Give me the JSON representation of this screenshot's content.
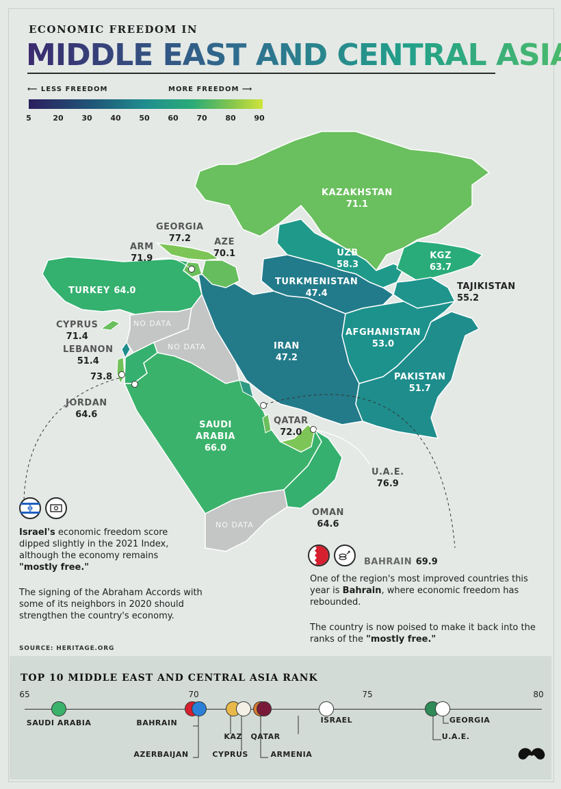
{
  "header": {
    "kicker": "ECONOMIC FREEDOM IN",
    "title": "MIDDLE EAST AND CENTRAL ASIA"
  },
  "legend": {
    "less_label": "LESS FREEDOM",
    "more_label": "MORE FREEDOM",
    "ticks": [
      "5",
      "20",
      "30",
      "40",
      "50",
      "60",
      "70",
      "80",
      "90"
    ],
    "gradient_colors": [
      "#2b1f5e",
      "#1f5c7a",
      "#1f8e8f",
      "#2aab77",
      "#8cc84b",
      "#cfe43a"
    ]
  },
  "countries": {
    "kazakhstan": {
      "name": "KAZAKHSTAN",
      "score": "71.1",
      "color": "#6abf5e"
    },
    "uzb": {
      "name": "UZB",
      "score": "58.3",
      "color": "#1f9a8a"
    },
    "kgz": {
      "name": "KGZ",
      "score": "63.7",
      "color": "#29ac7a"
    },
    "tajikistan": {
      "name": "TAJIKISTAN",
      "score": "55.2",
      "color": "#1e948d"
    },
    "turkmenistan": {
      "name": "TURKMENISTAN",
      "score": "47.4",
      "color": "#227b8a"
    },
    "afghanistan": {
      "name": "AFGHANISTAN",
      "score": "53.0",
      "color": "#1d928c"
    },
    "iran": {
      "name": "IRAN",
      "score": "47.2",
      "color": "#237a89"
    },
    "pakistan": {
      "name": "PAKISTAN",
      "score": "51.7",
      "color": "#1e8d8c"
    },
    "georgia": {
      "name": "GEORGIA",
      "score": "77.2",
      "color": "#7cc556"
    },
    "arm": {
      "name": "ARM",
      "score": "71.9",
      "color": "#6bbf5c"
    },
    "aze": {
      "name": "AZE",
      "score": "70.1",
      "color": "#66bd5e"
    },
    "turkey": {
      "name": "TURKEY",
      "score": "64.0",
      "color": "#34b06f"
    },
    "cyprus": {
      "name": "CYPRUS",
      "score": "71.4",
      "color": "#6abf5e"
    },
    "lebanon": {
      "name": "LEBANON",
      "score": "51.4",
      "color": "#1e8d8c"
    },
    "israel": {
      "score": "73.8",
      "color": "#70c15a"
    },
    "jordan": {
      "name": "JORDAN",
      "score": "64.6",
      "color": "#35b06e"
    },
    "saudi_arabia": {
      "name_line1": "SAUDI",
      "name_line2": "ARABIA",
      "score": "66.0",
      "color": "#3bb26b"
    },
    "qatar": {
      "name": "QATAR",
      "score": "72.0",
      "color": "#6bbf5c"
    },
    "uae": {
      "name": "U.A.E.",
      "score": "76.9",
      "color": "#7cc556"
    },
    "oman": {
      "name": "OMAN",
      "score": "64.6",
      "color": "#35b06e"
    },
    "bahrain": {
      "name": "BAHRAIN",
      "score": "69.9",
      "color": "#64bc5f"
    }
  },
  "no_data_label": "NO DATA",
  "callouts": {
    "israel_p1_bold": "Israel's",
    "israel_p1_rest": " economic freedom score dipped slightly in the 2021 Index, although the economy remains ",
    "israel_p1_bold2": "\"mostly free.\"",
    "israel_p2": "The signing of the Abraham Accords with some of its neighbors in 2020 should strengthen the country's economy.",
    "bahrain_p1_a": "One of the region's most improved countries this year is ",
    "bahrain_p1_bold": "Bahrain",
    "bahrain_p1_b": ", where economic freedom has rebounded.",
    "bahrain_p2_a": "The country is now poised to make it back into the ranks of the ",
    "bahrain_p2_bold": "\"mostly free.\""
  },
  "source": "SOURCE: HERITAGE.ORG",
  "ranking": {
    "title": "TOP 10 MIDDLE EAST AND CENTRAL ASIA RANK",
    "axis_ticks": [
      "65",
      "70",
      "75",
      "80"
    ],
    "items": [
      {
        "label": "SAUDI ARABIA",
        "score": 66.0
      },
      {
        "label": "BAHRAIN",
        "score": 69.9
      },
      {
        "label": "AZERBAIJAN",
        "score": 70.1
      },
      {
        "label": "KAZ",
        "score": 71.1
      },
      {
        "label": "CYPRUS",
        "score": 71.4
      },
      {
        "label": "ARMENIA",
        "score": 71.9
      },
      {
        "label": "QATAR",
        "score": 72.0
      },
      {
        "label": "ISRAEL",
        "score": 73.8
      },
      {
        "label": "U.A.E.",
        "score": 76.9
      },
      {
        "label": "GEORGIA",
        "score": 77.2
      }
    ]
  }
}
